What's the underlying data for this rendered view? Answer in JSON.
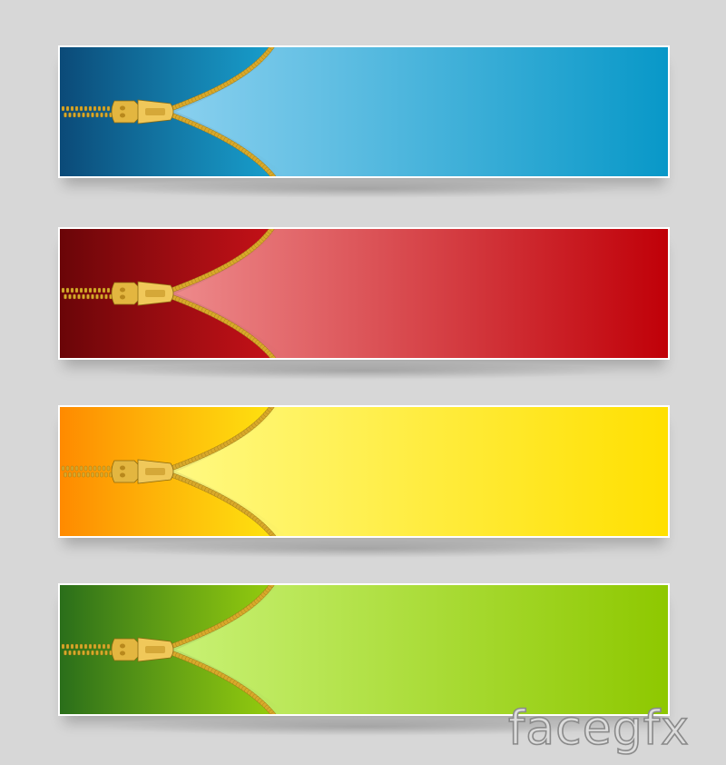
{
  "banners": [
    {
      "id": "blue",
      "outer_dark": "#0b4a78",
      "inner_light": "#a8ddf8",
      "right_edge": "#0898c8"
    },
    {
      "id": "red",
      "outer_dark": "#6a0508",
      "inner_light": "#f8aaaa",
      "right_edge": "#c00008"
    },
    {
      "id": "yellow",
      "outer_dark": "#ff8a00",
      "inner_light": "#ffffa0",
      "right_edge": "#ffe000"
    },
    {
      "id": "green",
      "outer_dark": "#2a6e1a",
      "inner_light": "#d6fb90",
      "right_edge": "#8ec800"
    }
  ],
  "zipper_color": "#d8a82a",
  "watermark": {
    "text": "facegfx"
  }
}
